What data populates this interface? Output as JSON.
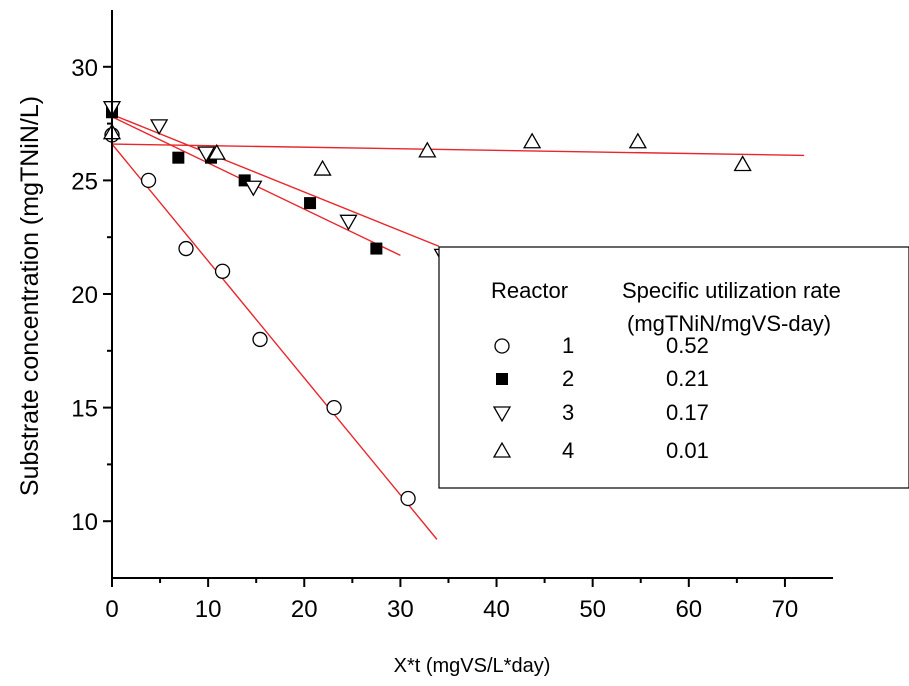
{
  "chart_data": {
    "type": "scatter",
    "xlabel": "X*t (mgVS/L*day)",
    "ylabel": "Substrate concentration (mgTNiN/L)",
    "xlim": [
      0,
      75
    ],
    "ylim": [
      7.5,
      32.5
    ],
    "xticks": [
      0,
      10,
      20,
      30,
      40,
      50,
      60,
      70
    ],
    "yticks": [
      10,
      15,
      20,
      25,
      30
    ],
    "xtick_labels": [
      "0",
      "10",
      "20",
      "30",
      "40",
      "50",
      "60",
      "70"
    ],
    "ytick_labels": [
      "10",
      "15",
      "20",
      "25",
      "30"
    ],
    "series": [
      {
        "name": "1",
        "marker": "open-circle",
        "points": [
          [
            0,
            27.0
          ],
          [
            3.8,
            25.0
          ],
          [
            7.7,
            22.0
          ],
          [
            11.5,
            21.0
          ],
          [
            15.4,
            18.0
          ],
          [
            23.1,
            15.0
          ],
          [
            30.8,
            11.0
          ]
        ],
        "fit": {
          "x": [
            0,
            33.8
          ],
          "y": [
            26.6,
            9.2
          ]
        }
      },
      {
        "name": "2",
        "marker": "filled-square",
        "points": [
          [
            0,
            28.0
          ],
          [
            6.9,
            26.0
          ],
          [
            10.3,
            26.0
          ],
          [
            13.8,
            25.0
          ],
          [
            20.6,
            24.0
          ],
          [
            27.5,
            22.0
          ]
        ],
        "fit": {
          "x": [
            0,
            30.0
          ],
          "y": [
            27.8,
            21.7
          ]
        }
      },
      {
        "name": "3",
        "marker": "open-down-triangle",
        "points": [
          [
            0,
            28.2
          ],
          [
            4.9,
            27.4
          ],
          [
            9.8,
            26.2
          ],
          [
            14.7,
            24.7
          ],
          [
            24.6,
            23.2
          ],
          [
            34.4,
            21.7
          ]
        ],
        "fit": {
          "x": [
            0,
            34.0
          ],
          "y": [
            27.9,
            22.1
          ]
        }
      },
      {
        "name": "4",
        "marker": "open-up-triangle",
        "points": [
          [
            0,
            27.1
          ],
          [
            10.9,
            26.2
          ],
          [
            21.9,
            25.5
          ],
          [
            32.8,
            26.3
          ],
          [
            43.7,
            26.7
          ],
          [
            54.7,
            26.7
          ],
          [
            65.6,
            25.7
          ]
        ],
        "fit": {
          "x": [
            0,
            72.0
          ],
          "y": [
            26.6,
            26.1
          ]
        }
      }
    ],
    "legend": {
      "position": "right",
      "col1_header": "Reactor",
      "col2_header_line1": "Specific utilization rate",
      "col2_header_line2": "(mgTNiN/mgVS-day)",
      "rows": [
        {
          "reactor": "1",
          "rate": "0.52",
          "marker": "open-circle"
        },
        {
          "reactor": "2",
          "rate": "0.21",
          "marker": "filled-square"
        },
        {
          "reactor": "3",
          "rate": "0.17",
          "marker": "open-down-triangle"
        },
        {
          "reactor": "4",
          "rate": "0.01",
          "marker": "open-up-triangle"
        }
      ]
    },
    "colors": {
      "fit_line": "#e8262b",
      "marker": "#000000"
    },
    "grid": false
  }
}
